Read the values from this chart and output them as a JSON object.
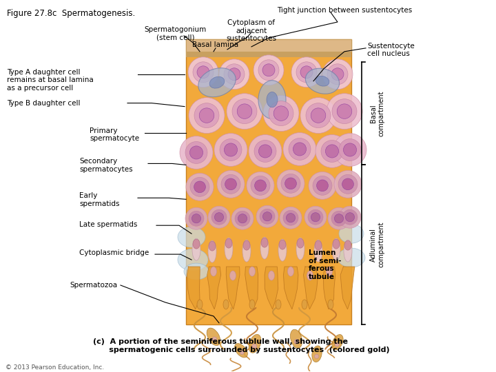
{
  "title": "Figure 27.8c  Spermatogenesis.",
  "caption_line1": "(c)  A portion of the seminiferous tublule wall, showing the",
  "caption_line2": "      spermatogenic cells surrounded by sustentocytes  (colored gold)",
  "copyright": "© 2013 Pearson Education, Inc.",
  "bg_color": "#ffffff",
  "labels": {
    "tight_junction": "Tight junction between sustentocytes",
    "spermatogonium": "Spermatogonium\n(stem cell)",
    "cytoplasm": "Cytoplasm of\nadjacent\nsustentocytes",
    "basal_lamina": "Basal lamina",
    "sustentocyte_nucleus": "Sustentocyte\ncell nucleus",
    "type_a": "Type A daughter cell\nremains at basal lamina\nas a precursor cell",
    "type_b": "Type B daughter cell",
    "primary": "Primary\nspermatocyte",
    "secondary": "Secondary\nspermatocytes",
    "early": "Early\nspermatids",
    "late": "Late spermatids",
    "cyto_bridge": "Cytoplasmic bridge",
    "lumen": "Lumen\nof semi-\nferous\ntubule",
    "spermatozoa": "Spermatozoa",
    "basal_compartment": "Basal\ncompartment",
    "adluminal_compartment": "Adluminal\ncompartment"
  }
}
